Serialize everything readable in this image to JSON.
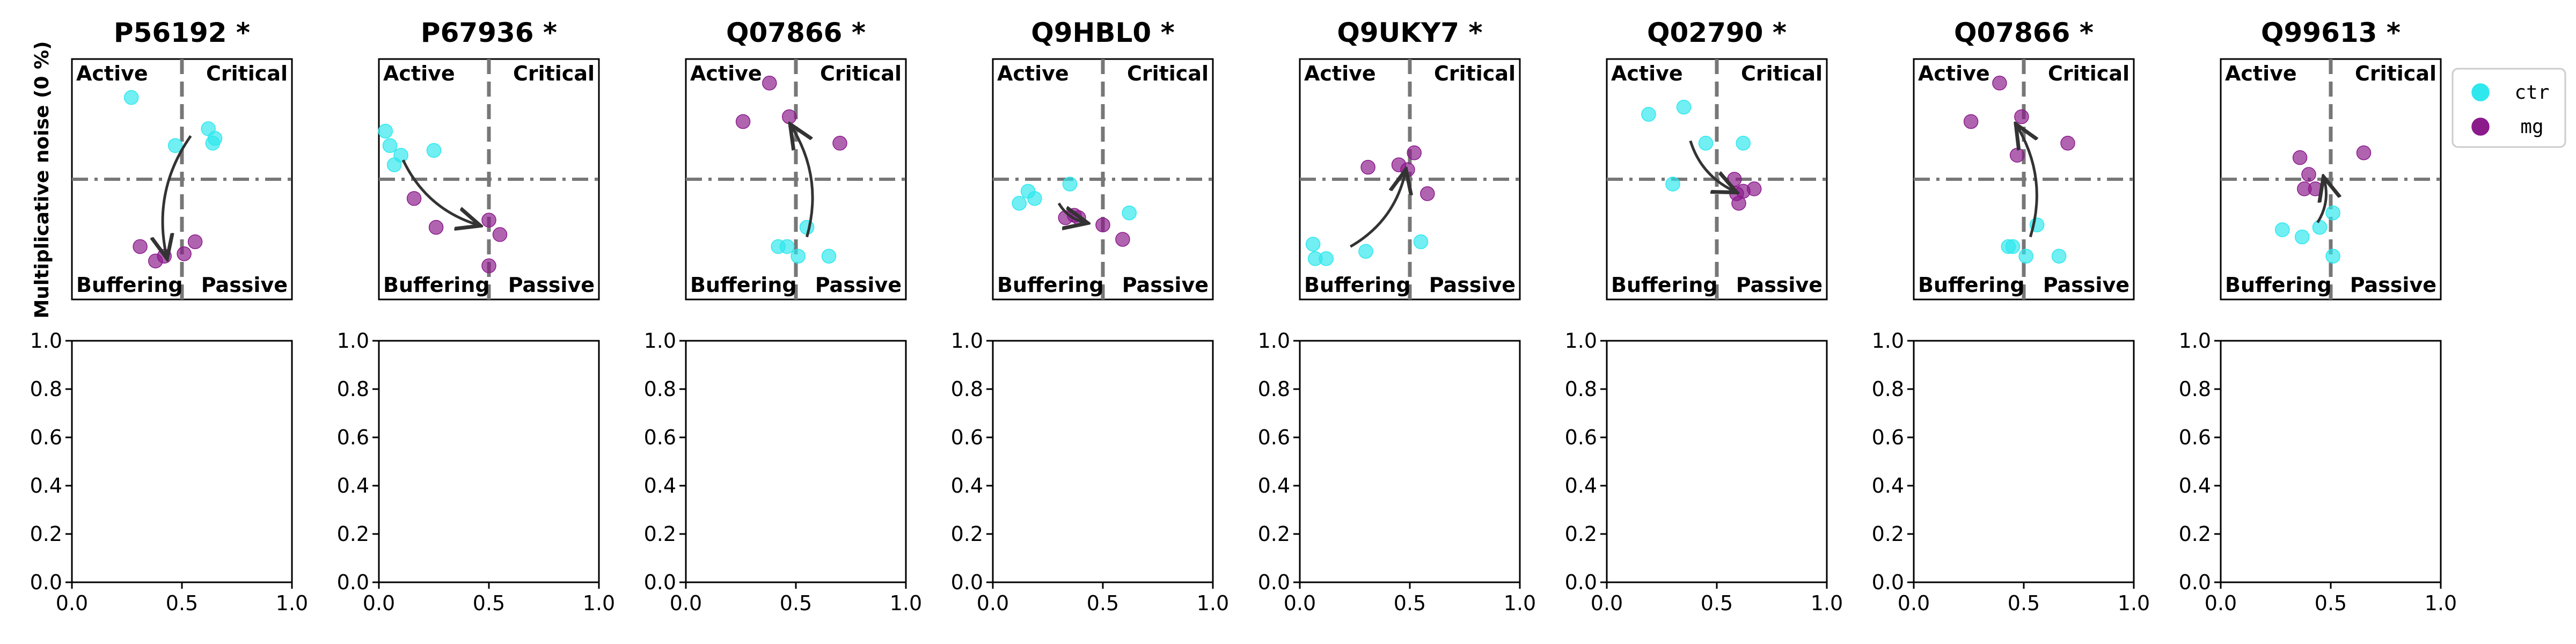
{
  "figure": {
    "ylabel": "Multiplicative noise (0 %)",
    "legend": {
      "placement": "right",
      "entries": [
        {
          "label": "ctr",
          "color": "#2ee8ee"
        },
        {
          "label": "mg",
          "color": "#8b1a8b"
        }
      ]
    },
    "quadrant_labels": {
      "top_left": "Active",
      "top_right": "Critical",
      "bottom_left": "Buffering",
      "bottom_right": "Passive"
    }
  },
  "chart_data": [
    {
      "type": "scatter",
      "title": "P56192 *",
      "xlim": [
        0,
        1
      ],
      "ylim": [
        0,
        1
      ],
      "vline": 0.5,
      "hline": 0.5,
      "series": [
        {
          "name": "ctr",
          "points": [
            [
              0.27,
              0.84
            ],
            [
              0.47,
              0.64
            ],
            [
              0.62,
              0.71
            ],
            [
              0.64,
              0.65
            ],
            [
              0.65,
              0.67
            ]
          ]
        },
        {
          "name": "mg",
          "points": [
            [
              0.31,
              0.22
            ],
            [
              0.38,
              0.16
            ],
            [
              0.42,
              0.18
            ],
            [
              0.51,
              0.19
            ],
            [
              0.56,
              0.24
            ]
          ]
        }
      ],
      "arrow": {
        "from": [
          0.54,
          0.68
        ],
        "to": [
          0.43,
          0.18
        ]
      }
    },
    {
      "type": "scatter",
      "title": "P67936 *",
      "xlim": [
        0,
        1
      ],
      "ylim": [
        0,
        1
      ],
      "vline": 0.5,
      "hline": 0.5,
      "series": [
        {
          "name": "ctr",
          "points": [
            [
              0.03,
              0.7
            ],
            [
              0.05,
              0.64
            ],
            [
              0.07,
              0.56
            ],
            [
              0.1,
              0.6
            ],
            [
              0.25,
              0.62
            ]
          ]
        },
        {
          "name": "mg",
          "points": [
            [
              0.16,
              0.42
            ],
            [
              0.26,
              0.3
            ],
            [
              0.5,
              0.33
            ],
            [
              0.55,
              0.27
            ],
            [
              0.5,
              0.14
            ]
          ]
        }
      ],
      "arrow": {
        "from": [
          0.11,
          0.58
        ],
        "to": [
          0.45,
          0.31
        ]
      }
    },
    {
      "type": "scatter",
      "title": "Q07866 *",
      "xlim": [
        0,
        1
      ],
      "ylim": [
        0,
        1
      ],
      "vline": 0.5,
      "hline": 0.5,
      "series": [
        {
          "name": "ctr",
          "points": [
            [
              0.42,
              0.22
            ],
            [
              0.46,
              0.22
            ],
            [
              0.51,
              0.18
            ],
            [
              0.55,
              0.3
            ],
            [
              0.65,
              0.18
            ]
          ]
        },
        {
          "name": "mg",
          "points": [
            [
              0.26,
              0.74
            ],
            [
              0.38,
              0.9
            ],
            [
              0.47,
              0.76
            ],
            [
              0.7,
              0.65
            ]
          ]
        }
      ],
      "arrow": {
        "from": [
          0.55,
          0.26
        ],
        "to": [
          0.48,
          0.72
        ]
      }
    },
    {
      "type": "scatter",
      "title": "Q9HBL0 *",
      "xlim": [
        0,
        1
      ],
      "ylim": [
        0,
        1
      ],
      "vline": 0.5,
      "hline": 0.5,
      "series": [
        {
          "name": "ctr",
          "points": [
            [
              0.12,
              0.4
            ],
            [
              0.16,
              0.45
            ],
            [
              0.19,
              0.42
            ],
            [
              0.35,
              0.48
            ],
            [
              0.62,
              0.36
            ]
          ]
        },
        {
          "name": "mg",
          "points": [
            [
              0.33,
              0.34
            ],
            [
              0.37,
              0.35
            ],
            [
              0.39,
              0.34
            ],
            [
              0.5,
              0.31
            ],
            [
              0.59,
              0.25
            ]
          ]
        }
      ],
      "arrow": {
        "from": [
          0.3,
          0.4
        ],
        "to": [
          0.42,
          0.32
        ]
      }
    },
    {
      "type": "scatter",
      "title": "Q9UKY7 *",
      "xlim": [
        0,
        1
      ],
      "ylim": [
        0,
        1
      ],
      "vline": 0.5,
      "hline": 0.5,
      "series": [
        {
          "name": "ctr",
          "points": [
            [
              0.06,
              0.23
            ],
            [
              0.07,
              0.17
            ],
            [
              0.12,
              0.17
            ],
            [
              0.3,
              0.2
            ],
            [
              0.55,
              0.24
            ]
          ]
        },
        {
          "name": "mg",
          "points": [
            [
              0.31,
              0.55
            ],
            [
              0.45,
              0.56
            ],
            [
              0.49,
              0.54
            ],
            [
              0.52,
              0.61
            ],
            [
              0.58,
              0.44
            ]
          ]
        }
      ],
      "arrow": {
        "from": [
          0.23,
          0.22
        ],
        "to": [
          0.48,
          0.53
        ]
      }
    },
    {
      "type": "scatter",
      "title": "Q02790 *",
      "xlim": [
        0,
        1
      ],
      "ylim": [
        0,
        1
      ],
      "vline": 0.5,
      "hline": 0.5,
      "series": [
        {
          "name": "ctr",
          "points": [
            [
              0.19,
              0.77
            ],
            [
              0.35,
              0.8
            ],
            [
              0.45,
              0.65
            ],
            [
              0.3,
              0.48
            ],
            [
              0.62,
              0.65
            ]
          ]
        },
        {
          "name": "mg",
          "points": [
            [
              0.58,
              0.5
            ],
            [
              0.59,
              0.44
            ],
            [
              0.6,
              0.4
            ],
            [
              0.62,
              0.45
            ],
            [
              0.67,
              0.46
            ]
          ]
        }
      ],
      "arrow": {
        "from": [
          0.38,
          0.66
        ],
        "to": [
          0.58,
          0.45
        ]
      }
    },
    {
      "type": "scatter",
      "title": "Q07866 *",
      "xlim": [
        0,
        1
      ],
      "ylim": [
        0,
        1
      ],
      "vline": 0.5,
      "hline": 0.5,
      "series": [
        {
          "name": "ctr",
          "points": [
            [
              0.43,
              0.22
            ],
            [
              0.45,
              0.22
            ],
            [
              0.51,
              0.18
            ],
            [
              0.56,
              0.31
            ],
            [
              0.66,
              0.18
            ]
          ]
        },
        {
          "name": "mg",
          "points": [
            [
              0.26,
              0.74
            ],
            [
              0.39,
              0.9
            ],
            [
              0.47,
              0.6
            ],
            [
              0.49,
              0.76
            ],
            [
              0.7,
              0.65
            ]
          ]
        }
      ],
      "arrow": {
        "from": [
          0.53,
          0.26
        ],
        "to": [
          0.47,
          0.72
        ]
      }
    },
    {
      "type": "scatter",
      "title": "Q99613 *",
      "xlim": [
        0,
        1
      ],
      "ylim": [
        0,
        1
      ],
      "vline": 0.5,
      "hline": 0.5,
      "series": [
        {
          "name": "ctr",
          "points": [
            [
              0.28,
              0.29
            ],
            [
              0.37,
              0.26
            ],
            [
              0.45,
              0.3
            ],
            [
              0.51,
              0.36
            ],
            [
              0.51,
              0.18
            ]
          ]
        },
        {
          "name": "mg",
          "points": [
            [
              0.36,
              0.59
            ],
            [
              0.38,
              0.46
            ],
            [
              0.4,
              0.52
            ],
            [
              0.43,
              0.46
            ],
            [
              0.65,
              0.61
            ]
          ]
        }
      ],
      "arrow": {
        "from": [
          0.44,
          0.32
        ],
        "to": [
          0.47,
          0.5
        ]
      }
    }
  ],
  "empty_axes": {
    "xticks": [
      "0.0",
      "0.5",
      "1.0"
    ],
    "yticks": [
      "0.0",
      "0.2",
      "0.4",
      "0.6",
      "0.8",
      "1.0"
    ]
  }
}
